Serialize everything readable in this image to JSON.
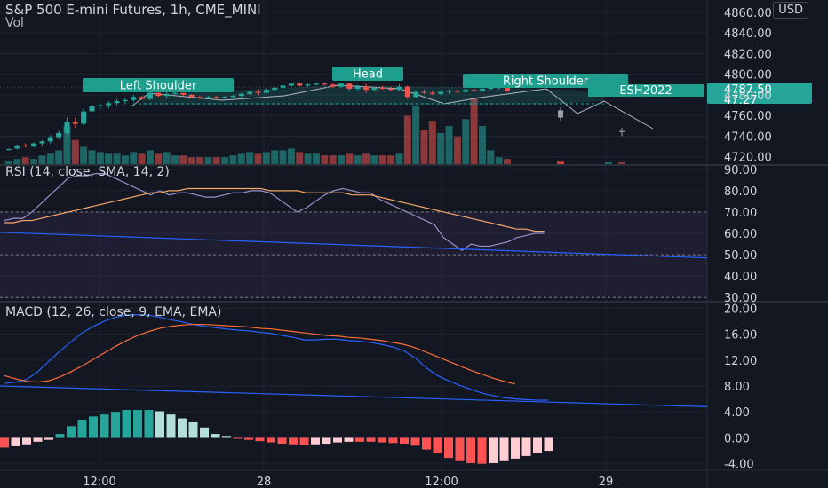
{
  "header": {
    "title": "S&P 500 E-mini Futures, 1h, CME_MINI",
    "volume_label": "Vol",
    "currency": "USD"
  },
  "colors": {
    "background": "#131722",
    "up": "#26a69a",
    "down": "#ef5350",
    "rsi_line": "#9c8fc8",
    "rsi_ma": "#f5a86a",
    "macd_line": "#2962ff",
    "signal_line": "#ff6d3a",
    "trendline": "#2962ff",
    "label_bg": "#1e9e8d"
  },
  "chart_data": [
    {
      "type": "candlestick",
      "pane": "price",
      "title": "S&P 500 E-mini Futures, 1h, CME_MINI",
      "ylim": [
        4712,
        4872
      ],
      "y_ticks": [
        "4860.00",
        "4840.00",
        "4820.00",
        "4800.00",
        "4780.00",
        "4760.00",
        "4740.00",
        "4720.00"
      ],
      "x_ticks": [
        "12:00",
        "28",
        "12:00",
        "29"
      ],
      "last_price": "4787.50",
      "countdown": "47:27",
      "symbol_tag": "ESH2022",
      "annotations": [
        "Left Shoulder",
        "Head",
        "Right Shoulder"
      ],
      "ohlc": [
        [
          4727,
          4728,
          4726,
          4727.5
        ],
        [
          4728,
          4732,
          4727,
          4731
        ],
        [
          4731,
          4733,
          4729,
          4730
        ],
        [
          4730,
          4734,
          4729,
          4733
        ],
        [
          4733,
          4736,
          4731,
          4735
        ],
        [
          4735,
          4741,
          4733,
          4739
        ],
        [
          4739,
          4745,
          4737,
          4743
        ],
        [
          4743,
          4758,
          4741,
          4754
        ],
        [
          4754,
          4758,
          4748,
          4752
        ],
        [
          4752,
          4767,
          4750,
          4764
        ],
        [
          4764,
          4771,
          4762,
          4769
        ],
        [
          4769,
          4772,
          4766,
          4770
        ],
        [
          4770,
          4774,
          4767,
          4772
        ],
        [
          4772,
          4776,
          4770,
          4774
        ],
        [
          4774,
          4777,
          4771,
          4775
        ],
        [
          4775,
          4780,
          4773,
          4778
        ],
        [
          4778,
          4779,
          4775,
          4776
        ],
        [
          4776,
          4784,
          4775,
          4782
        ],
        [
          4782,
          4783,
          4778,
          4779
        ],
        [
          4779,
          4783,
          4777,
          4781
        ],
        [
          4781,
          4783,
          4780,
          4782
        ],
        [
          4782,
          4782,
          4779,
          4780
        ],
        [
          4780,
          4781,
          4777,
          4778
        ],
        [
          4778,
          4779,
          4776,
          4777
        ],
        [
          4777,
          4779,
          4776,
          4778
        ],
        [
          4778,
          4779,
          4776,
          4777
        ],
        [
          4777,
          4779,
          4776,
          4778
        ],
        [
          4778,
          4780,
          4777,
          4779
        ],
        [
          4779,
          4782,
          4778,
          4781
        ],
        [
          4781,
          4784,
          4780,
          4783
        ],
        [
          4783,
          4785,
          4780,
          4782
        ],
        [
          4782,
          4787,
          4781,
          4785
        ],
        [
          4785,
          4788,
          4784,
          4787
        ],
        [
          4787,
          4790,
          4786,
          4789
        ],
        [
          4789,
          4792,
          4788,
          4791
        ],
        [
          4791,
          4792,
          4788,
          4789
        ],
        [
          4789,
          4791,
          4788,
          4790
        ],
        [
          4790,
          4792,
          4789,
          4791
        ],
        [
          4791,
          4791,
          4789,
          4790
        ],
        [
          4790,
          4791,
          4787,
          4788
        ],
        [
          4788,
          4792,
          4787,
          4791
        ],
        [
          4791,
          4792,
          4784,
          4786
        ],
        [
          4786,
          4790,
          4784,
          4788
        ],
        [
          4788,
          4791,
          4782,
          4785
        ],
        [
          4785,
          4788,
          4783,
          4787
        ],
        [
          4787,
          4789,
          4785,
          4786
        ],
        [
          4786,
          4788,
          4784,
          4785
        ],
        [
          4785,
          4790,
          4784,
          4788
        ],
        [
          4788,
          4789,
          4776,
          4778
        ],
        [
          4778,
          4784,
          4777,
          4783
        ],
        [
          4783,
          4785,
          4781,
          4782
        ],
        [
          4782,
          4784,
          4780,
          4781
        ],
        [
          4781,
          4784,
          4780,
          4783
        ],
        [
          4783,
          4785,
          4781,
          4784
        ],
        [
          4784,
          4785,
          4782,
          4783
        ],
        [
          4783,
          4786,
          4782,
          4785
        ],
        [
          4785,
          4786,
          4783,
          4784
        ],
        [
          4784,
          4787,
          4783,
          4786
        ],
        [
          4786,
          4788,
          4785,
          4787
        ],
        [
          4787,
          4788,
          4785,
          4787.5
        ],
        [
          4787.5,
          4789,
          4783,
          4784
        ],
        [
          4765,
          4768,
          4758,
          4760
        ],
        [
          4760,
          4762,
          4755,
          4758
        ],
        [
          4782,
          4786,
          4779,
          4785
        ],
        [
          4745,
          4748,
          4740,
          4744
        ]
      ],
      "volume_note": "relative bar heights per candle",
      "volume": [
        2,
        3,
        4,
        3,
        5,
        6,
        8,
        22,
        14,
        10,
        8,
        7,
        6,
        6,
        5,
        7,
        6,
        8,
        6,
        7,
        5,
        5,
        4,
        4,
        4,
        4,
        4,
        5,
        6,
        7,
        6,
        7,
        8,
        8,
        9,
        7,
        6,
        6,
        5,
        5,
        5,
        6,
        5,
        6,
        5,
        5,
        5,
        6,
        28,
        34,
        20,
        25,
        18,
        22,
        16,
        26,
        38,
        22,
        8,
        4,
        3,
        2,
        1,
        1,
        1
      ]
    },
    {
      "type": "line",
      "pane": "RSI",
      "title": "RSI (14, close, SMA, 14, 2)",
      "ylim": [
        28,
        92
      ],
      "y_ticks": [
        "90.00",
        "80.00",
        "70.00",
        "60.00",
        "50.00",
        "40.00",
        "30.00"
      ],
      "band": [
        30,
        70
      ],
      "series": [
        {
          "name": "RSI",
          "values": [
            66,
            67,
            67,
            70,
            74,
            78,
            82,
            86,
            87,
            87,
            88,
            88,
            86,
            84,
            82,
            80,
            78,
            80,
            78,
            79,
            79,
            78,
            77,
            77,
            78,
            79,
            79,
            80,
            80,
            79,
            76,
            73,
            70,
            72,
            75,
            78,
            80,
            81,
            80,
            79,
            79,
            76,
            74,
            72,
            70,
            68,
            66,
            64,
            58,
            55,
            52,
            55,
            54,
            54,
            55,
            56,
            58,
            59,
            60,
            60
          ]
        },
        {
          "name": "MA",
          "values": [
            65,
            65,
            66,
            66,
            67,
            68,
            69,
            70,
            71,
            72,
            73,
            74,
            75,
            76,
            77,
            78,
            79,
            79,
            80,
            80,
            81,
            81,
            81,
            81,
            81,
            81,
            81,
            81,
            81,
            80,
            80,
            80,
            80,
            79,
            79,
            79,
            79,
            79,
            78,
            78,
            78,
            77,
            76,
            75,
            74,
            73,
            72,
            71,
            70,
            69,
            68,
            67,
            66,
            65,
            64,
            63,
            62,
            62,
            61,
            61
          ]
        }
      ],
      "trendline": [
        [
          0,
          60.5
        ],
        [
          1,
          48.5
        ]
      ]
    },
    {
      "type": "line",
      "pane": "MACD",
      "title": "MACD (12, 26, close, 9, EMA, EMA)",
      "ylim": [
        -5,
        21
      ],
      "y_ticks": [
        "20.00",
        "16.00",
        "12.00",
        "8.00",
        "4.00",
        "0.00",
        "-4.00"
      ],
      "series": [
        {
          "name": "MACD",
          "values": [
            8.4,
            8.6,
            9,
            10.2,
            11.8,
            13.4,
            14.8,
            16.2,
            17.2,
            18,
            18.6,
            18.9,
            19,
            18.9,
            18.6,
            18.2,
            17.9,
            17.5,
            17.2,
            17,
            16.8,
            16.6,
            16.5,
            16.3,
            16.1,
            15.8,
            15.5,
            15.1,
            15.1,
            15.2,
            15.2,
            15,
            14.9,
            14.7,
            14.4,
            14,
            13.4,
            12.3,
            10.8,
            9.6,
            8.8,
            8.1,
            7.5,
            6.9,
            6.5,
            6.2,
            6,
            5.9,
            5.8,
            5.8
          ]
        },
        {
          "name": "Signal",
          "values": [
            9.6,
            9.1,
            8.7,
            8.6,
            8.8,
            9.4,
            10.2,
            11.1,
            12.1,
            13.1,
            14.1,
            15,
            15.8,
            16.4,
            16.9,
            17.2,
            17.4,
            17.5,
            17.5,
            17.4,
            17.3,
            17.2,
            17.1,
            16.9,
            16.8,
            16.6,
            16.4,
            16.2,
            16,
            15.8,
            15.7,
            15.5,
            15.4,
            15.2,
            15,
            14.7,
            14.4,
            13.9,
            13.2,
            12.5,
            11.8,
            11.1,
            10.4,
            9.8,
            9.2,
            8.7,
            8.3
          ]
        }
      ],
      "histogram": [
        -1.5,
        -1.3,
        -1,
        -0.6,
        -0.3,
        0.6,
        1.8,
        2.8,
        3.3,
        3.6,
        4,
        4.3,
        4.3,
        4.3,
        4.1,
        3.6,
        3,
        2.4,
        1.6,
        0.6,
        0.3,
        -0.1,
        -0.3,
        -0.5,
        -0.7,
        -0.9,
        -1,
        -1.1,
        -1,
        -0.9,
        -0.7,
        -0.6,
        -0.6,
        -0.6,
        -0.7,
        -0.8,
        -0.9,
        -1.2,
        -1.8,
        -2.4,
        -3.1,
        -3.6,
        -3.9,
        -4,
        -3.9,
        -3.6,
        -3.2,
        -2.8,
        -2.4,
        -2
      ],
      "trendline": [
        [
          0,
          8
        ],
        [
          1,
          5
        ]
      ]
    }
  ]
}
